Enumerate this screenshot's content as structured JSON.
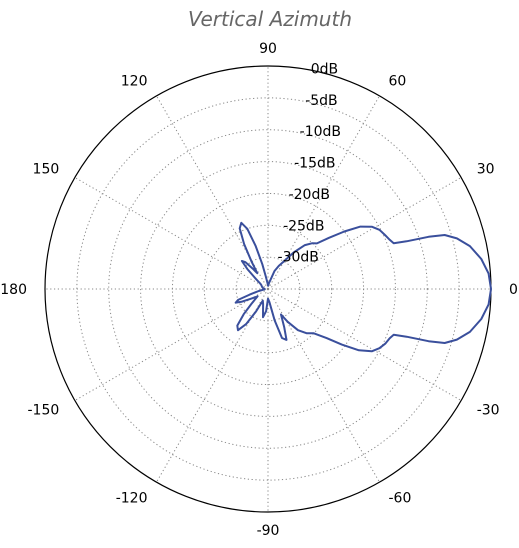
{
  "chart_data": {
    "type": "polar-line",
    "title": "Vertical Azimuth",
    "angle_ticks": [
      {
        "deg": 0,
        "label": "0"
      },
      {
        "deg": 30,
        "label": "30"
      },
      {
        "deg": 60,
        "label": "60"
      },
      {
        "deg": 90,
        "label": "90"
      },
      {
        "deg": 120,
        "label": "120"
      },
      {
        "deg": 150,
        "label": "150"
      },
      {
        "deg": 180,
        "label": "180"
      },
      {
        "deg": -150,
        "label": "-150"
      },
      {
        "deg": -120,
        "label": "-120"
      },
      {
        "deg": -90,
        "label": "-90"
      },
      {
        "deg": -60,
        "label": "-60"
      },
      {
        "deg": -30,
        "label": "-30"
      }
    ],
    "radial_ticks": [
      {
        "db": 0,
        "label": "0dB"
      },
      {
        "db": -5,
        "label": "-5dB"
      },
      {
        "db": -10,
        "label": "-10dB"
      },
      {
        "db": -15,
        "label": "-15dB"
      },
      {
        "db": -20,
        "label": "-20dB"
      },
      {
        "db": -25,
        "label": "-25dB"
      },
      {
        "db": -30,
        "label": "-30dB"
      }
    ],
    "radial_range": [
      -35,
      0
    ],
    "radial_label_angle_deg": 80,
    "grid": true,
    "line_color": "#3a4f9c",
    "series": [
      {
        "points": [
          [
            0,
            0
          ],
          [
            4,
            -0.3
          ],
          [
            8,
            -1.2
          ],
          [
            12,
            -2.6
          ],
          [
            15,
            -4.3
          ],
          [
            17,
            -6
          ],
          [
            18,
            -8.5
          ],
          [
            19,
            -12
          ],
          [
            20,
            -14
          ],
          [
            22,
            -14.4
          ],
          [
            25,
            -14.8
          ],
          [
            28,
            -15.2
          ],
          [
            31,
            -16
          ],
          [
            34,
            -17.5
          ],
          [
            37,
            -20
          ],
          [
            40,
            -22.5
          ],
          [
            43,
            -24.5
          ],
          [
            46,
            -25
          ],
          [
            50,
            -26
          ],
          [
            55,
            -28
          ],
          [
            60,
            -30
          ],
          [
            65,
            -31
          ],
          [
            70,
            -32
          ],
          [
            75,
            -33.5
          ],
          [
            80,
            -34
          ],
          [
            88,
            -34.5
          ],
          [
            95,
            -34
          ],
          [
            100,
            -33
          ],
          [
            103,
            -31
          ],
          [
            106,
            -28
          ],
          [
            109,
            -25
          ],
          [
            112,
            -23.8
          ],
          [
            115,
            -24.5
          ],
          [
            118,
            -27
          ],
          [
            121,
            -30
          ],
          [
            124,
            -32
          ],
          [
            127,
            -31
          ],
          [
            130,
            -29.5
          ],
          [
            133,
            -29
          ],
          [
            136,
            -30.5
          ],
          [
            140,
            -32.5
          ],
          [
            145,
            -33.5
          ],
          [
            150,
            -33.8
          ],
          [
            160,
            -34
          ],
          [
            170,
            -34.2
          ],
          [
            180,
            -34.5
          ],
          [
            -175,
            -34.5
          ],
          [
            -168,
            -33.5
          ],
          [
            -163,
            -32
          ],
          [
            -160,
            -30
          ],
          [
            -157,
            -29.5
          ],
          [
            -154,
            -30.5
          ],
          [
            -150,
            -32
          ],
          [
            -145,
            -33
          ],
          [
            -138,
            -31.5
          ],
          [
            -134,
            -29.5
          ],
          [
            -130,
            -27.5
          ],
          [
            -126,
            -27
          ],
          [
            -122,
            -28.5
          ],
          [
            -118,
            -31
          ],
          [
            -114,
            -33
          ],
          [
            -108,
            -32.5
          ],
          [
            -100,
            -30.5
          ],
          [
            -95,
            -31.5
          ],
          [
            -90,
            -33.5
          ],
          [
            -84,
            -33
          ],
          [
            -78,
            -30
          ],
          [
            -74,
            -27
          ],
          [
            -70,
            -26.5
          ],
          [
            -67,
            -28.5
          ],
          [
            -63,
            -30.5
          ],
          [
            -59,
            -29
          ],
          [
            -54,
            -27
          ],
          [
            -49,
            -25.8
          ],
          [
            -44,
            -25
          ],
          [
            -40,
            -23
          ],
          [
            -37,
            -20.5
          ],
          [
            -34,
            -17.8
          ],
          [
            -31,
            -16
          ],
          [
            -28,
            -15.2
          ],
          [
            -25,
            -14.7
          ],
          [
            -22,
            -14.4
          ],
          [
            -20,
            -14
          ],
          [
            -19,
            -12
          ],
          [
            -18,
            -8.5
          ],
          [
            -17,
            -6
          ],
          [
            -15,
            -4.3
          ],
          [
            -12,
            -2.6
          ],
          [
            -8,
            -1.2
          ],
          [
            -4,
            -0.3
          ],
          [
            0,
            0
          ]
        ]
      }
    ]
  }
}
